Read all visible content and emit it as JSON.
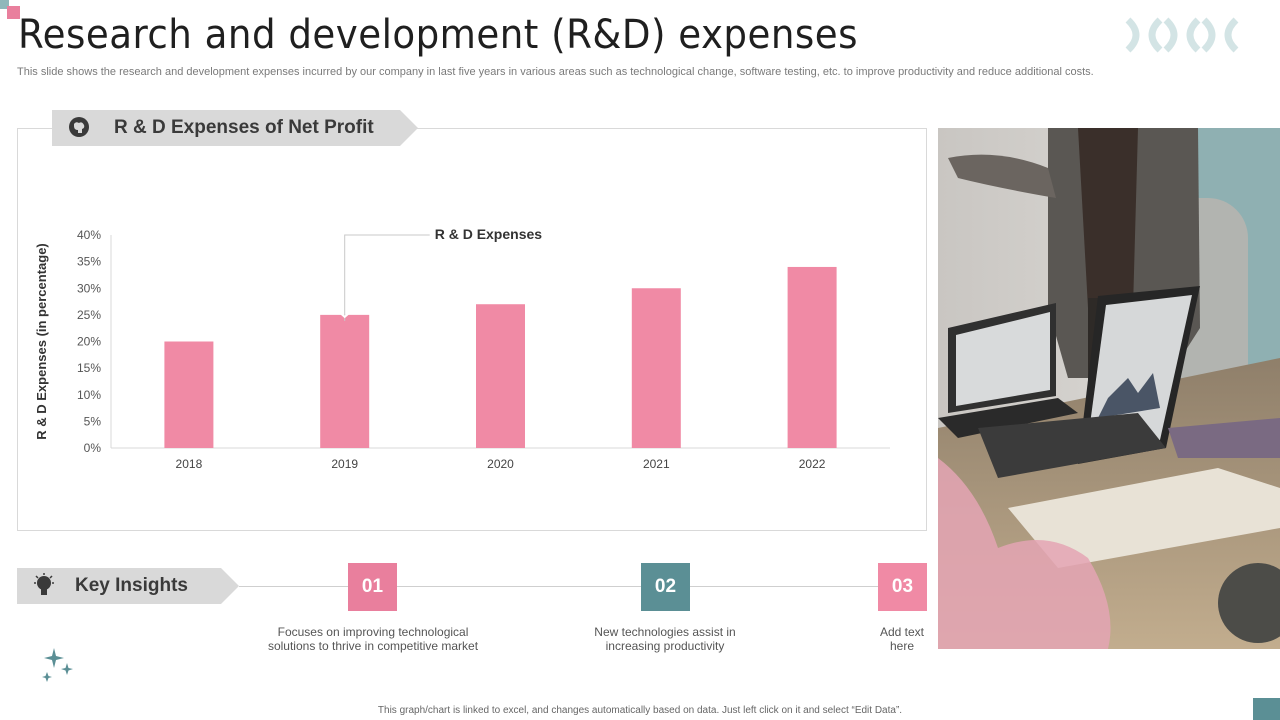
{
  "header": {
    "title": "Research and development (R&D) expenses",
    "subtitle": "This slide shows the research and development expenses incurred by our company in last five  years in various areas such as technological change, software testing, etc. to  improve productivity and reduce additional costs."
  },
  "chart_section": {
    "label": "R & D Expenses of Net Profit"
  },
  "chart_data": {
    "type": "bar",
    "categories": [
      "2018",
      "2019",
      "2020",
      "2021",
      "2022"
    ],
    "series": [
      {
        "name": "R & D Expenses",
        "values": [
          20,
          25,
          27,
          30,
          34
        ]
      }
    ],
    "ylabel": "R & D Expenses (in percentage)",
    "xlabel": "",
    "ylim": [
      0,
      40
    ],
    "yticks": [
      "0%",
      "5%",
      "10%",
      "15%",
      "20%",
      "25%",
      "30%",
      "35%",
      "40%"
    ],
    "grid": false,
    "annotation": "R & D Expenses",
    "bar_color": "#f08aa5"
  },
  "insights": {
    "label": "Key Insights",
    "steps": [
      {
        "number": "01",
        "text": "Focuses on improving technological solutions to thrive in competitive market",
        "color": "#e97f9d"
      },
      {
        "number": "02",
        "text": "New technologies assist in increasing productivity",
        "color": "#5b8f95"
      },
      {
        "number": "03",
        "text": "Add text here",
        "color": "#f08aa5"
      }
    ]
  },
  "footer": {
    "note": "This graph/chart is linked to excel, and changes automatically based on data. Just left click on it and select “Edit Data”."
  },
  "icons": [
    "brain-head-icon",
    "lightbulb-icon",
    "sparkle-icon",
    "xo-pattern-icon"
  ]
}
